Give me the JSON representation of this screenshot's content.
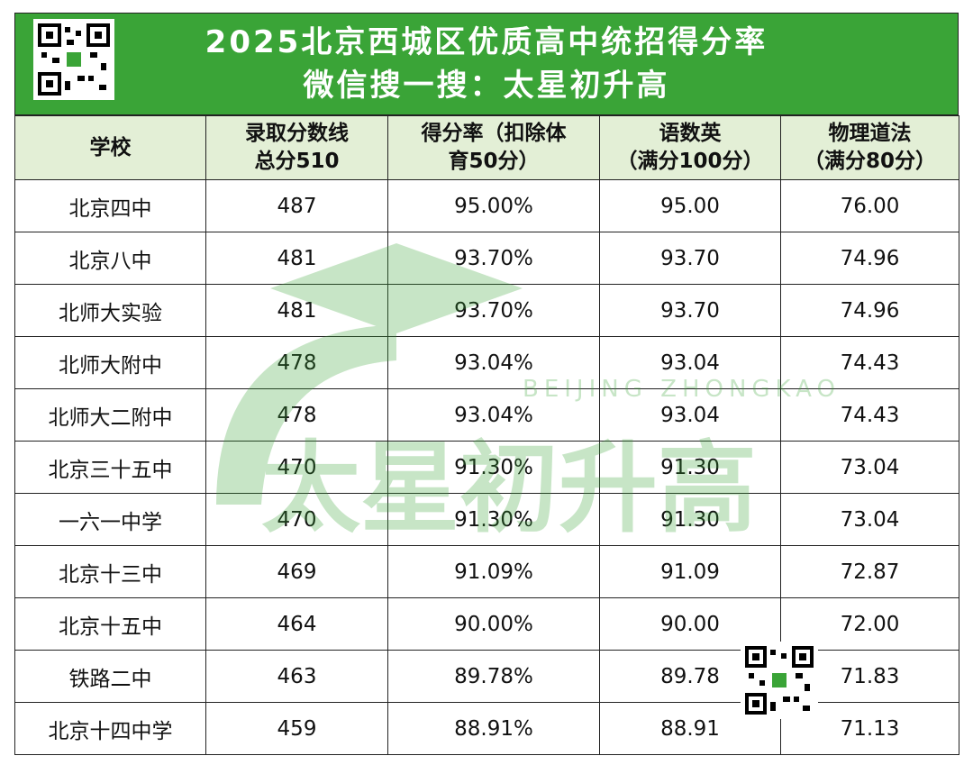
{
  "header": {
    "title": "2025北京西城区优质高中统招得分率",
    "subtitle": "微信搜一搜：太星初升高"
  },
  "watermark": {
    "text": "太星初升高",
    "subtitle": "BEIJING ZHONGKAO"
  },
  "table": {
    "columns": [
      [
        "学校"
      ],
      [
        "录取分数线",
        "总分510"
      ],
      [
        "得分率（扣除体",
        "育50分）"
      ],
      [
        "语数英",
        "（满分100分）"
      ],
      [
        "物理道法",
        "（满分80分）"
      ]
    ],
    "rows": [
      [
        "北京四中",
        "487",
        "95.00%",
        "95.00",
        "76.00"
      ],
      [
        "北京八中",
        "481",
        "93.70%",
        "93.70",
        "74.96"
      ],
      [
        "北师大实验",
        "481",
        "93.70%",
        "93.70",
        "74.96"
      ],
      [
        "北师大附中",
        "478",
        "93.04%",
        "93.04",
        "74.43"
      ],
      [
        "北师大二附中",
        "478",
        "93.04%",
        "93.04",
        "74.43"
      ],
      [
        "北京三十五中",
        "470",
        "91.30%",
        "91.30",
        "73.04"
      ],
      [
        "一六一中学",
        "470",
        "91.30%",
        "91.30",
        "73.04"
      ],
      [
        "北京十三中",
        "469",
        "91.09%",
        "91.09",
        "72.87"
      ],
      [
        "北京十五中",
        "464",
        "90.00%",
        "90.00",
        "72.00"
      ],
      [
        "铁路二中",
        "463",
        "89.78%",
        "89.78",
        "71.83"
      ],
      [
        "北京十四中学",
        "459",
        "88.91%",
        "88.91",
        "71.13"
      ]
    ]
  }
}
